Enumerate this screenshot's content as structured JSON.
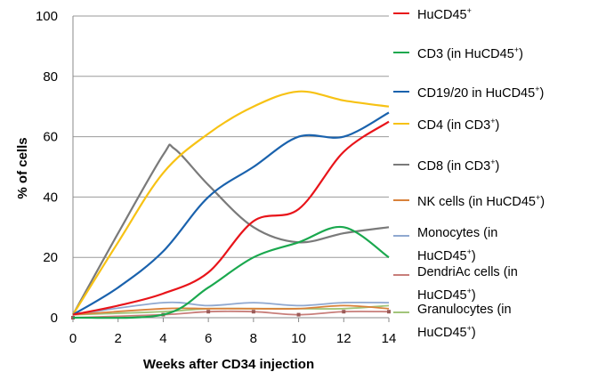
{
  "chart_data": {
    "type": "line",
    "title": "",
    "xlabel": "Weeks after CD34 injection",
    "ylabel": "% of cells",
    "xlim": [
      0,
      14
    ],
    "ylim": [
      0,
      100
    ],
    "x_ticks": [
      0,
      2,
      4,
      6,
      8,
      10,
      12,
      14
    ],
    "y_ticks": [
      0,
      20,
      40,
      60,
      80,
      100
    ],
    "grid": "horizontal",
    "legend_position": "right",
    "series": [
      {
        "name": "HuCD45",
        "sup": "+",
        "color": "#e8141a",
        "points": [
          [
            0,
            1
          ],
          [
            2,
            4
          ],
          [
            4,
            8
          ],
          [
            6,
            15
          ],
          [
            8,
            32
          ],
          [
            10,
            36
          ],
          [
            12,
            55
          ],
          [
            14,
            65
          ]
        ]
      },
      {
        "name": "CD3 (in HuCD45",
        "sup": "+",
        "suffix": ")",
        "color": "#1aa84e",
        "points": [
          [
            0,
            0
          ],
          [
            4,
            1
          ],
          [
            6,
            10
          ],
          [
            8,
            20
          ],
          [
            10,
            25
          ],
          [
            12,
            30
          ],
          [
            14,
            20
          ]
        ]
      },
      {
        "name": "CD19/20 in HuCD45",
        "sup": "+",
        "suffix": ")",
        "color": "#1a62ad",
        "points": [
          [
            0,
            1
          ],
          [
            2,
            10
          ],
          [
            4,
            22
          ],
          [
            6,
            40
          ],
          [
            8,
            50
          ],
          [
            10,
            60
          ],
          [
            12,
            60
          ],
          [
            14,
            68
          ]
        ]
      },
      {
        "name": "CD4 (in CD3",
        "sup": "+",
        "suffix": ")",
        "color": "#f7c214",
        "points": [
          [
            0,
            1
          ],
          [
            2,
            25
          ],
          [
            4,
            48
          ],
          [
            6,
            61
          ],
          [
            8,
            70
          ],
          [
            10,
            75
          ],
          [
            12,
            72
          ],
          [
            14,
            70
          ]
        ]
      },
      {
        "name": "CD8 (in CD3",
        "sup": "+",
        "suffix": ")",
        "color": "#7a7a7a",
        "points": [
          [
            0,
            1
          ],
          [
            2,
            28
          ],
          [
            4,
            54
          ],
          [
            4.5,
            56
          ],
          [
            6,
            44
          ],
          [
            8,
            30
          ],
          [
            10,
            25
          ],
          [
            12,
            28
          ],
          [
            14,
            30
          ]
        ]
      },
      {
        "name": "NK cells (in HuCD45",
        "sup": "+",
        "suffix": ")",
        "color": "#d9823b",
        "points": [
          [
            0,
            1
          ],
          [
            4,
            3
          ],
          [
            6,
            3
          ],
          [
            8,
            3
          ],
          [
            10,
            3
          ],
          [
            12,
            4
          ],
          [
            14,
            3
          ]
        ]
      },
      {
        "name": "Monocytes (in HuCD45",
        "sup": "+",
        "suffix": ")",
        "color": "#8fa8d0",
        "points": [
          [
            0,
            1
          ],
          [
            4,
            5
          ],
          [
            6,
            4
          ],
          [
            8,
            5
          ],
          [
            10,
            4
          ],
          [
            12,
            5
          ],
          [
            14,
            5
          ]
        ]
      },
      {
        "name": "DendriAc cells (in HuCD45",
        "sup": "+",
        "suffix": ")",
        "color": "#c87e7a",
        "points": [
          [
            0,
            0
          ],
          [
            4,
            1
          ],
          [
            6,
            2
          ],
          [
            8,
            2
          ],
          [
            10,
            1
          ],
          [
            12,
            2
          ],
          [
            14,
            2
          ]
        ]
      },
      {
        "name": "Granulocytes (in HuCD45",
        "sup": "+",
        "suffix": ")",
        "color": "#a2c57a",
        "points": [
          [
            0,
            1
          ],
          [
            4,
            2
          ],
          [
            6,
            3
          ],
          [
            8,
            3
          ],
          [
            10,
            3
          ],
          [
            12,
            3
          ],
          [
            14,
            4
          ]
        ]
      }
    ]
  },
  "legend_labels": [
    {
      "line1": "HuCD45",
      "sup1": "+",
      "end1": "",
      "line2": "",
      "sup2": "",
      "end2": ""
    },
    {
      "line1": "CD3 (in HuCD45",
      "sup1": "+",
      "end1": ")",
      "line2": "",
      "sup2": "",
      "end2": ""
    },
    {
      "line1": "CD19/20 in HuCD45",
      "sup1": "+",
      "end1": ")",
      "line2": "",
      "sup2": "",
      "end2": ""
    },
    {
      "line1": "CD4 (in CD3",
      "sup1": "+",
      "end1": ")",
      "line2": "",
      "sup2": "",
      "end2": ""
    },
    {
      "line1": "CD8 (in CD3",
      "sup1": "+",
      "end1": ")",
      "line2": "",
      "sup2": "",
      "end2": ""
    },
    {
      "line1": "NK cells (in HuCD45",
      "sup1": "+",
      "end1": ")",
      "line2": "",
      "sup2": "",
      "end2": ""
    },
    {
      "line1": "Monocytes (in",
      "sup1": "",
      "end1": "",
      "line2": "HuCD45",
      "sup2": "+",
      "end2": ")"
    },
    {
      "line1": "DendriAc cells (in",
      "sup1": "",
      "end1": "",
      "line2": "HuCD45",
      "sup2": "+",
      "end2": ")"
    },
    {
      "line1": "Granulocytes (in",
      "sup1": "",
      "end1": "",
      "line2": "HuCD45",
      "sup2": "+",
      "end2": ")"
    }
  ]
}
